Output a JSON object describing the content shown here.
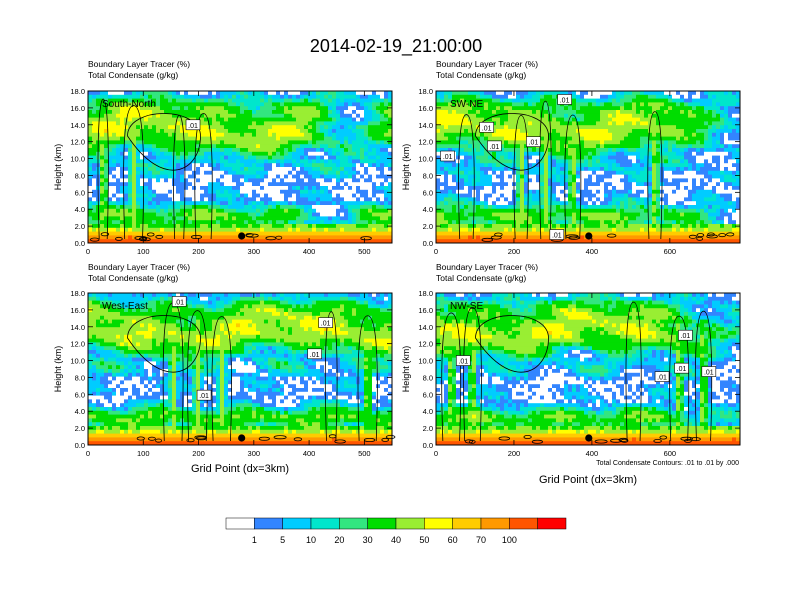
{
  "title": "2014-02-19_21:00:00",
  "colors": [
    "#ffffff",
    "#3385ff",
    "#00ccff",
    "#00e6cc",
    "#33e680",
    "#00dd00",
    "#99ee33",
    "#ffff00",
    "#ffcc00",
    "#ff9900",
    "#ff5500",
    "#ff0000"
  ],
  "chart_data": {
    "type": "heatmap",
    "shared_ylabel": "Height (km)",
    "shared_xlabel": "Grid Point (dx=3km)",
    "left_title_1": "Boundary Layer Tracer   (%)",
    "left_title_2": "Total Condensate   (g/kg)",
    "contour_note": "Total Condensate Contours: .01 to .01 by .000",
    "contour_label": ".01",
    "y_ticks": [
      "0.0",
      "2.0",
      "4.0",
      "6.0",
      "8.0",
      "10.0",
      "12.0",
      "14.0",
      "16.0",
      "18.0"
    ],
    "ylim": [
      0,
      18
    ],
    "panels": [
      {
        "id": "south-north",
        "label": "South-North",
        "xlim": [
          0,
          550
        ],
        "x_ticks": [
          "0",
          "100",
          "200",
          "300",
          "400",
          "500"
        ],
        "x_tick_values": [
          0,
          100,
          200,
          300,
          400,
          500
        ],
        "marker_x": 278,
        "contour_labels": [
          [
            190,
            14.0
          ]
        ]
      },
      {
        "id": "sw-ne",
        "label": "SW-NE",
        "xlim": [
          0,
          780
        ],
        "x_ticks": [
          "0",
          "200",
          "400",
          "600"
        ],
        "x_tick_values": [
          0,
          200,
          400,
          600
        ],
        "marker_x": 392,
        "contour_labels": [
          [
            330,
            17.0
          ],
          [
            130,
            13.7
          ],
          [
            30,
            10.3
          ],
          [
            150,
            11.5
          ],
          [
            250,
            12.0
          ],
          [
            310,
            1.0
          ]
        ]
      },
      {
        "id": "west-east",
        "label": "West-East",
        "xlim": [
          0,
          550
        ],
        "x_ticks": [
          "0",
          "100",
          "200",
          "300",
          "400",
          "500"
        ],
        "x_tick_values": [
          0,
          100,
          200,
          300,
          400,
          500
        ],
        "marker_x": 278,
        "contour_labels": [
          [
            165,
            17.0
          ],
          [
            430,
            14.5
          ],
          [
            410,
            10.8
          ],
          [
            210,
            5.9
          ]
        ]
      },
      {
        "id": "nw-se",
        "label": "NW-SE",
        "xlim": [
          0,
          780
        ],
        "x_ticks": [
          "0",
          "200",
          "400",
          "600"
        ],
        "x_tick_values": [
          0,
          200,
          400,
          600
        ],
        "marker_x": 392,
        "contour_labels": [
          [
            70,
            10.0
          ],
          [
            630,
            9.1
          ],
          [
            580,
            8.1
          ],
          [
            700,
            8.7
          ],
          [
            640,
            13.0
          ]
        ]
      }
    ],
    "legend": {
      "labels": [
        "1",
        "5",
        "10",
        "20",
        "30",
        "40",
        "50",
        "60",
        "70",
        "100"
      ]
    }
  }
}
